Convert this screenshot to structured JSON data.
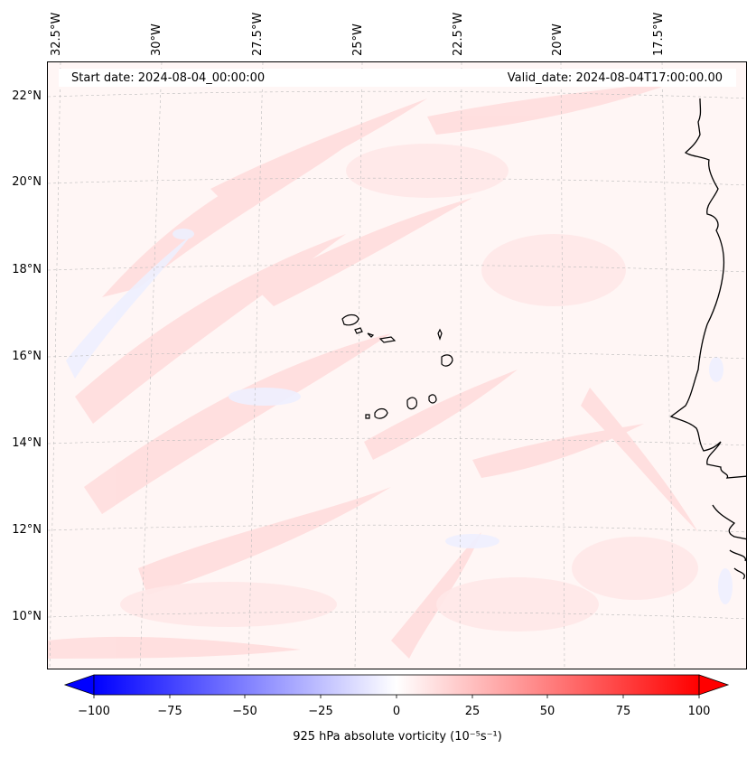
{
  "header": {
    "start_date": "Start date: 2024-08-04_00:00:00",
    "valid_date": "Valid_date: 2024-08-04T17:00:00.00"
  },
  "lon_labels": [
    "32.5°W",
    "30°W",
    "27.5°W",
    "25°W",
    "22.5°W",
    "20°W",
    "17.5°W"
  ],
  "lat_labels": [
    "22°N",
    "20°N",
    "18°N",
    "16°N",
    "14°N",
    "12°N",
    "10°N"
  ],
  "colorbar": {
    "label": "925 hPa absolute vorticity (10⁻⁵s⁻¹)",
    "ticks": [
      "−100",
      "−75",
      "−50",
      "−25",
      "0",
      "25",
      "50",
      "75",
      "100"
    ],
    "vmin": -100,
    "vmax": 100,
    "low_color": "#0000ff",
    "mid_color": "#ffffff",
    "high_color": "#ff0000"
  },
  "colors": {
    "field_base": "#fff6f5",
    "field_pos": "#ffdcdc",
    "field_neg": "#eef0ff",
    "coast": "#000000",
    "grid": "#bbbbbb"
  }
}
